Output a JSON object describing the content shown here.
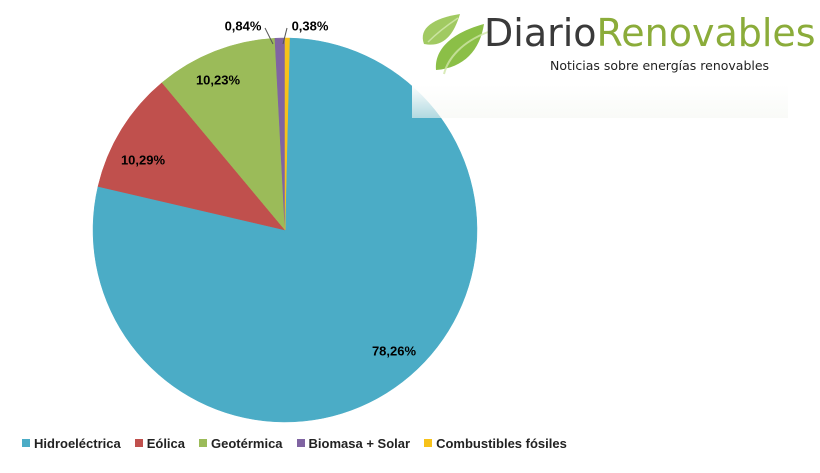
{
  "logo": {
    "word1": "Diario",
    "word2": "Renovables",
    "tagline": "Noticias sobre energías renovables"
  },
  "chart_data": {
    "type": "pie",
    "title": "",
    "start_angle_deg": 1.37,
    "clockwise": true,
    "slices": [
      {
        "name": "Hidroeléctrica",
        "value": 78.26,
        "label": "78,26%",
        "color": "#4bacc6"
      },
      {
        "name": "Eólica",
        "value": 10.29,
        "label": "10,29%",
        "color": "#c0504d"
      },
      {
        "name": "Geotérmica",
        "value": 10.23,
        "label": "10,23%",
        "color": "#9bbb59"
      },
      {
        "name": "Biomasa + Solar",
        "value": 0.84,
        "label": "0,84%",
        "color": "#8064a2"
      },
      {
        "name": "Combustibles fósiles",
        "value": 0.38,
        "label": "0,38%",
        "color": "#f7c21a"
      }
    ],
    "legend_position": "bottom-left"
  }
}
